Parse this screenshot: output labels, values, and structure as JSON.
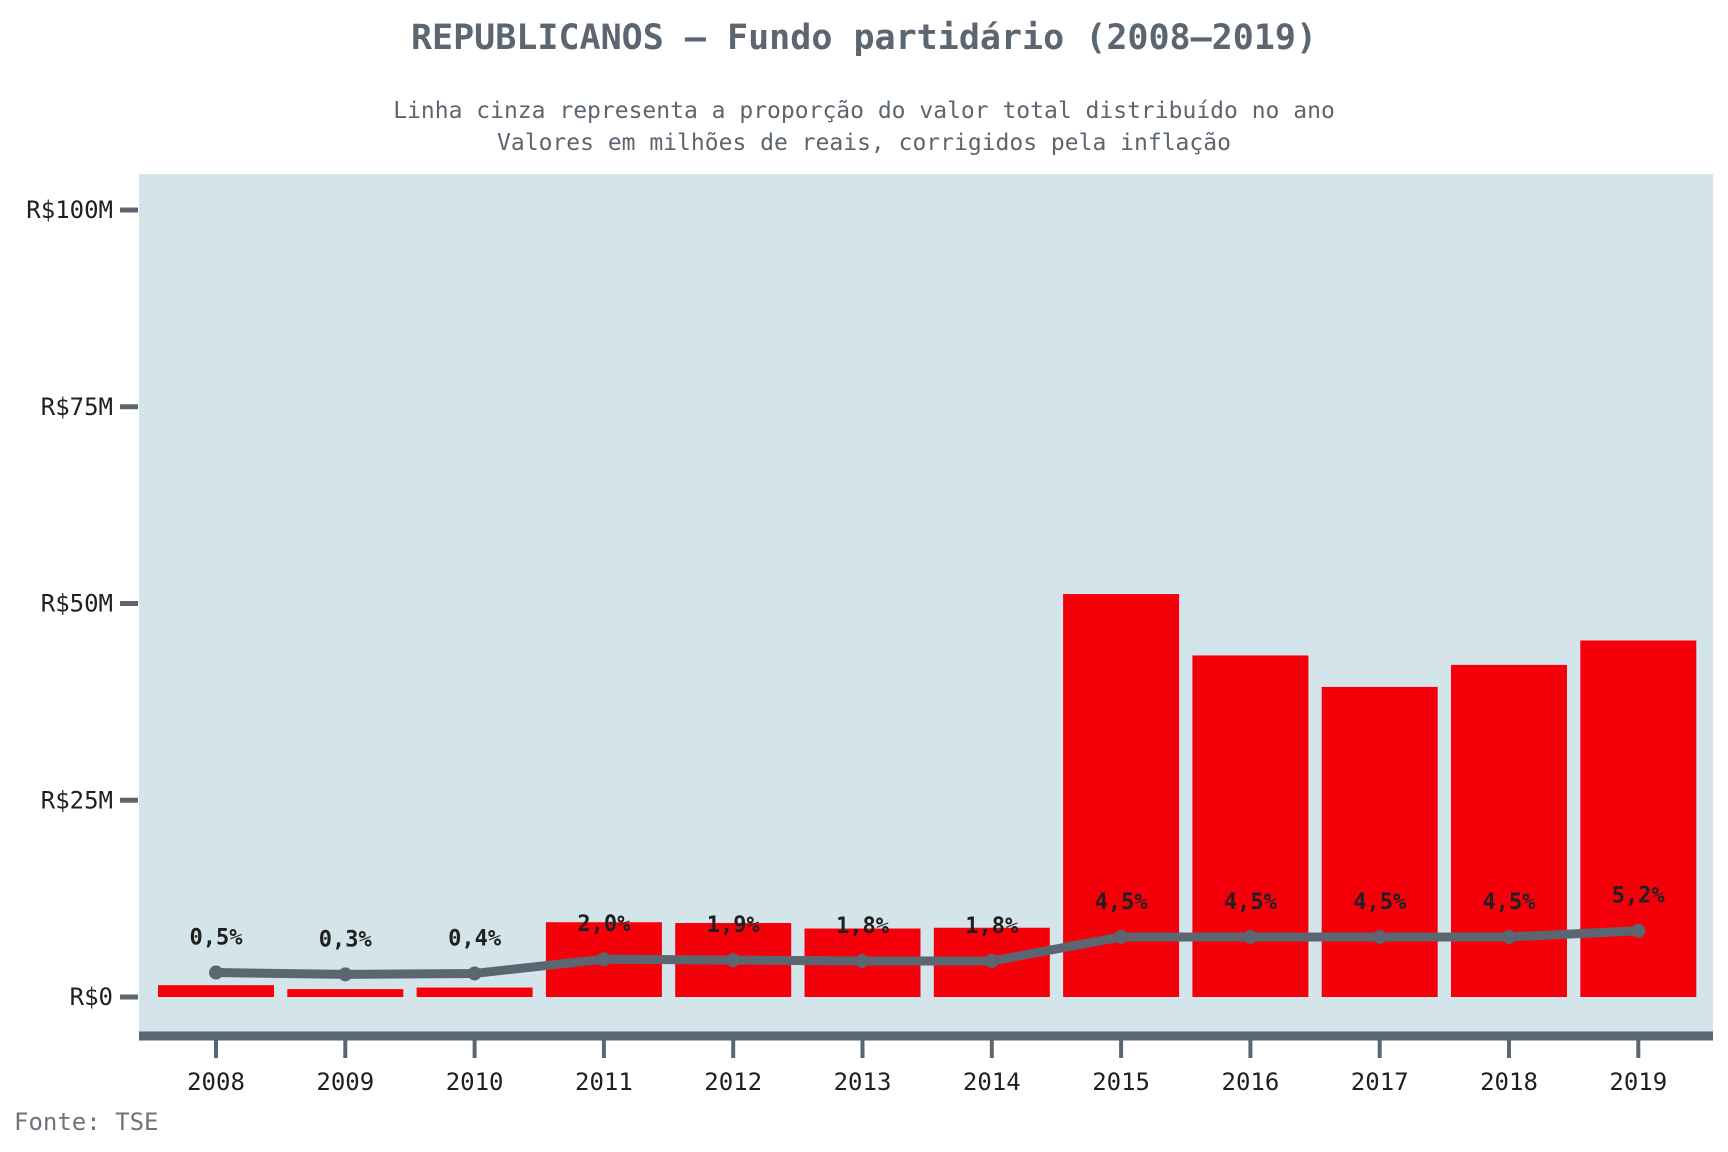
{
  "chart_data": {
    "type": "bar",
    "title": "REPUBLICANOS – Fundo partidário (2008–2019)",
    "subtitle": [
      "Linha cinza representa a proporção do valor total distribuído no ano",
      "Valores em milhões de reais, corrigidos pela inflação"
    ],
    "source": "Fonte: TSE",
    "categories": [
      "2008",
      "2009",
      "2010",
      "2011",
      "2012",
      "2013",
      "2014",
      "2015",
      "2016",
      "2017",
      "2018",
      "2019"
    ],
    "series": [
      {
        "type": "bar",
        "unit": "milhões de reais",
        "values": [
          1.5,
          1.0,
          1.2,
          9.5,
          9.4,
          8.7,
          8.8,
          51.2,
          43.4,
          39.4,
          42.2,
          45.3
        ],
        "color": "#f5000a"
      },
      {
        "type": "line",
        "unit": "% do total",
        "values": [
          0.5,
          0.3,
          0.4,
          2.0,
          1.9,
          1.8,
          1.8,
          4.5,
          4.5,
          4.5,
          4.5,
          5.2
        ],
        "labels": [
          "0,5%",
          "0,3%",
          "0,4%",
          "2,0%",
          "1,9%",
          "1,8%",
          "1,8%",
          "4,5%",
          "4,5%",
          "4,5%",
          "4,5%",
          "5,2%"
        ],
        "color": "#5b6670"
      }
    ],
    "yticks": [
      {
        "value": 0,
        "label": "R$0"
      },
      {
        "value": 25,
        "label": "R$25M"
      },
      {
        "value": 50,
        "label": "R$50M"
      },
      {
        "value": 75,
        "label": "R$75M"
      },
      {
        "value": 100,
        "label": "R$100M"
      }
    ],
    "ylim": [
      0,
      105
    ],
    "grid": false,
    "plot_background": "#d4e4eb",
    "axis_color": "#5b6670",
    "text_color": "#1f1f1f"
  }
}
